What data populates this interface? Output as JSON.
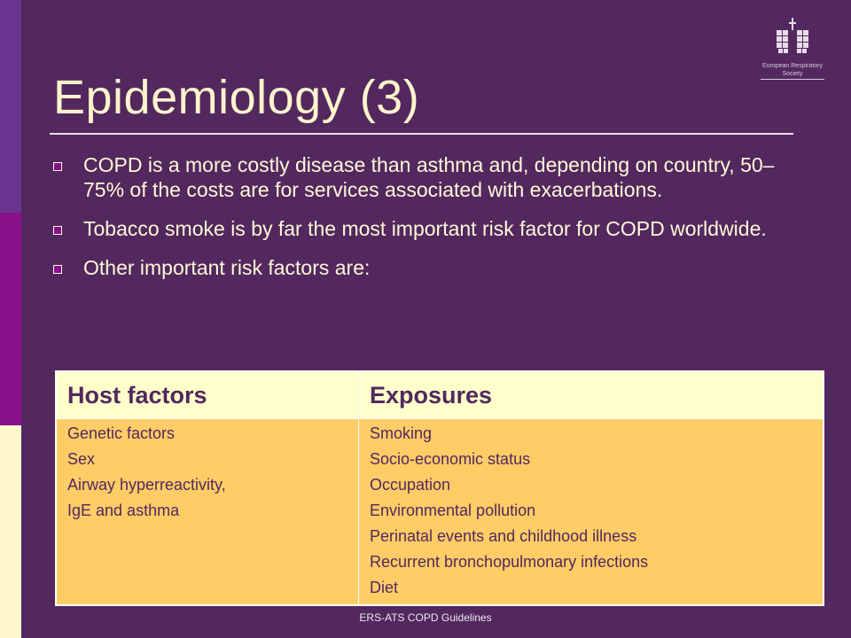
{
  "logo": {
    "org_line1": "European Respiratory",
    "org_line2": "Society"
  },
  "slide": {
    "title": "Epidemiology (3)",
    "bullets": [
      "COPD is a more costly disease than asthma and, depending on country, 50–75% of the costs are for services associated with exacerbations.",
      "Tobacco smoke is by far the most important risk factor for COPD worldwide.",
      "Other important risk factors are:"
    ]
  },
  "table": {
    "headers": [
      "Host factors",
      "Exposures"
    ],
    "host_factors": [
      "Genetic factors",
      "Sex",
      "Airway hyperreactivity,",
      "IgE and asthma"
    ],
    "exposures": [
      "Smoking",
      "Socio-economic status",
      "Occupation",
      "Environmental pollution",
      "Perinatal events and childhood illness",
      "Recurrent bronchopulmonary infections",
      "Diet"
    ]
  },
  "footer": "ERS-ATS COPD Guidelines",
  "colors": {
    "background": "#52285e",
    "title_text": "#fff4cc",
    "table_header": "#ffffcc",
    "table_body": "#ffcc66"
  }
}
